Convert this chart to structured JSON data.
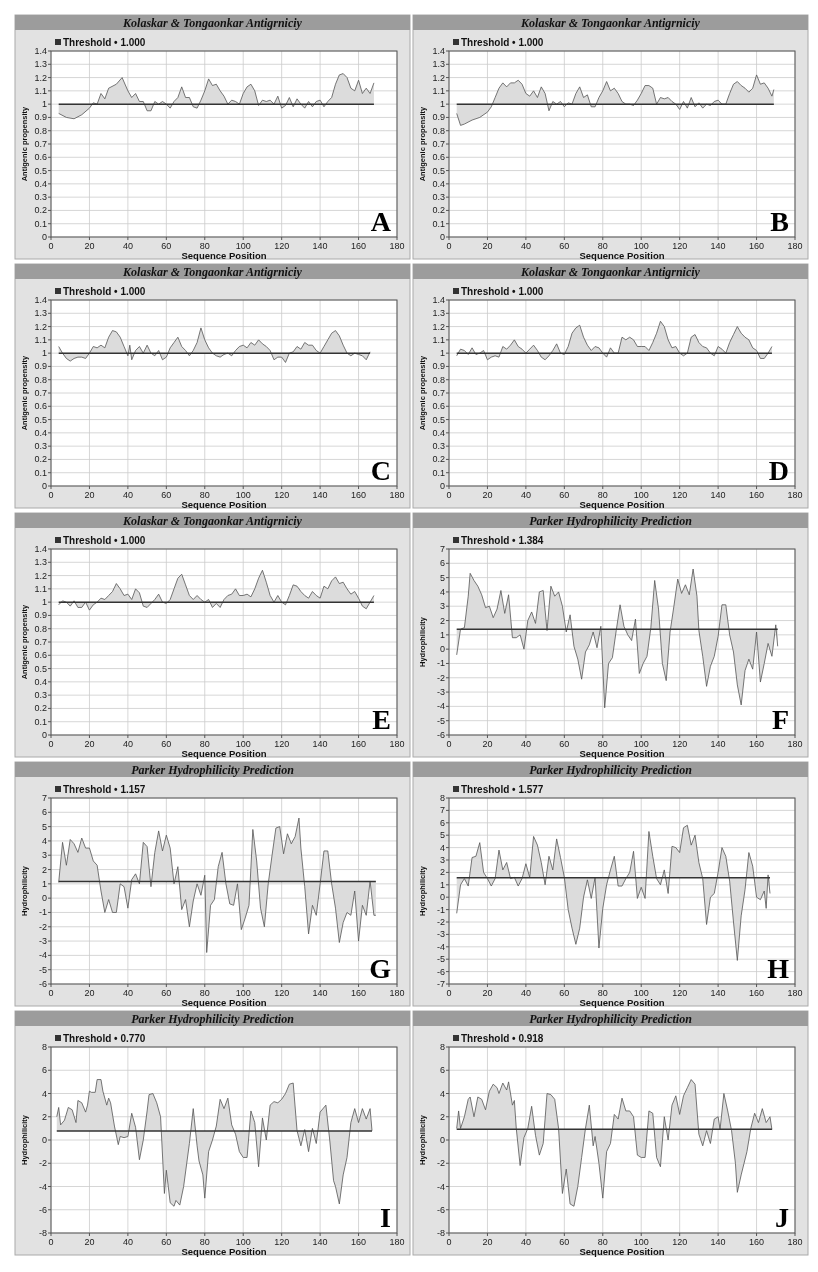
{
  "chart_data": [
    {
      "type": "line",
      "title": "Kolaskar & Tongaonkar Antigrniciy",
      "xlabel": "Sequence Position",
      "ylabel": "Antigenic propensity",
      "annotations": [
        "A"
      ],
      "xlim": [
        0,
        180
      ],
      "xticks": [
        0,
        20,
        40,
        60,
        80,
        100,
        120,
        140,
        160,
        180
      ],
      "ylim": [
        0,
        1.4
      ],
      "yticks": [
        0,
        0.1,
        0.2,
        0.3,
        0.4,
        0.5,
        0.6,
        0.7,
        0.8,
        0.9,
        1,
        1.1,
        1.2,
        1.3,
        1.4
      ],
      "grid": true,
      "ref_lines": [
        {
          "axis": "y",
          "value": 1,
          "label": "Threshold • 1.000",
          "color": "#333333"
        }
      ],
      "series": [
        {
          "color": "#555555",
          "x": [
            4,
            8,
            12,
            16,
            20,
            22,
            24,
            26,
            28,
            30,
            34,
            37,
            40,
            42,
            44,
            46,
            48,
            50,
            52,
            54,
            56,
            58,
            60,
            62,
            64,
            66,
            68,
            70,
            72,
            74,
            76,
            78,
            80,
            82,
            84,
            86,
            88,
            90,
            92,
            94,
            96,
            98,
            100,
            102,
            104,
            106,
            108,
            110,
            112,
            114,
            116,
            118,
            120,
            122,
            124,
            126,
            128,
            130,
            132,
            134,
            136,
            138,
            140,
            142,
            144,
            146,
            148,
            150,
            152,
            154,
            156,
            158,
            160,
            162,
            164,
            166,
            168
          ],
          "values": [
            0.93,
            0.9,
            0.89,
            0.92,
            0.97,
            1.01,
            1,
            1.08,
            1.04,
            1.12,
            1.15,
            1.2,
            1.1,
            1.05,
            1.08,
            1.02,
            1.02,
            0.95,
            0.95,
            1.02,
            1,
            1.02,
            1,
            0.97,
            1.02,
            1.05,
            1.13,
            1.05,
            1.05,
            0.98,
            0.97,
            1.03,
            1.1,
            1.19,
            1.14,
            1.15,
            1.1,
            1.06,
            1,
            1.03,
            1.02,
            1,
            1.08,
            1.13,
            1.15,
            1.1,
            0.99,
            1.03,
            1.02,
            1.03,
            1,
            1.06,
            0.97,
            0.99,
            1.05,
            0.98,
            1.04,
            1,
            0.97,
            1.02,
            0.98,
            1.02,
            1.03,
            0.98,
            1.02,
            1.05,
            1.15,
            1.22,
            1.23,
            1.2,
            1.12,
            1.1,
            1.18,
            1.08,
            1.12,
            1.08,
            1.16
          ]
        }
      ]
    },
    {
      "type": "line",
      "title": "Kolaskar & Tongaonkar Antigrniciy",
      "xlabel": "Sequence Position",
      "ylabel": "Antigenic propensity",
      "annotations": [
        "B"
      ],
      "xlim": [
        0,
        180
      ],
      "xticks": [
        0,
        20,
        40,
        60,
        80,
        100,
        120,
        140,
        160,
        180
      ],
      "ylim": [
        0,
        1.4
      ],
      "yticks": [
        0,
        0.1,
        0.2,
        0.3,
        0.4,
        0.5,
        0.6,
        0.7,
        0.8,
        0.9,
        1,
        1.1,
        1.2,
        1.3,
        1.4
      ],
      "grid": true,
      "ref_lines": [
        {
          "axis": "y",
          "value": 1,
          "label": "Threshold • 1.000",
          "color": "#333333"
        }
      ],
      "series": [
        {
          "color": "#555555",
          "x": [
            4,
            6,
            8,
            12,
            16,
            20,
            22,
            24,
            26,
            28,
            30,
            32,
            34,
            36,
            38,
            40,
            42,
            44,
            46,
            48,
            50,
            52,
            54,
            56,
            58,
            60,
            62,
            64,
            66,
            68,
            70,
            72,
            74,
            76,
            78,
            80,
            82,
            84,
            86,
            88,
            90,
            92,
            94,
            96,
            98,
            100,
            102,
            104,
            106,
            108,
            110,
            112,
            114,
            116,
            118,
            120,
            122,
            124,
            126,
            128,
            130,
            132,
            134,
            136,
            138,
            140,
            142,
            144,
            146,
            148,
            150,
            152,
            154,
            156,
            158,
            160,
            162,
            164,
            166,
            168,
            169
          ],
          "values": [
            0.93,
            0.84,
            0.85,
            0.88,
            0.9,
            0.94,
            0.98,
            1.05,
            1.12,
            1.16,
            1.13,
            1.16,
            1.16,
            1.18,
            1.15,
            1.08,
            1.06,
            1.1,
            1.05,
            1.13,
            1.08,
            0.95,
            1.02,
            1,
            1.02,
            0.98,
            1.01,
            1,
            1.08,
            1.13,
            1.05,
            1.07,
            0.98,
            0.98,
            1.05,
            1.1,
            1.17,
            1.1,
            1.12,
            1.08,
            1.02,
            1,
            1,
            0.99,
            1.03,
            1.08,
            1.14,
            1.14,
            1.12,
            1,
            1.05,
            1.04,
            1.05,
            1.02,
            1,
            0.96,
            1.02,
            0.97,
            1.05,
            0.98,
            1.01,
            0.97,
            1,
            0.99,
            1.02,
            1.03,
            1,
            1,
            1.08,
            1.15,
            1.17,
            1.14,
            1.12,
            1.09,
            1.12,
            1.22,
            1.15,
            1.16,
            1.12,
            1.06,
            1.11
          ]
        }
      ]
    },
    {
      "type": "line",
      "title": "Kolaskar & Tongaonkar Antigrniciy",
      "xlabel": "Sequence Position",
      "ylabel": "Antigenic propensity",
      "annotations": [
        "C"
      ],
      "xlim": [
        0,
        180
      ],
      "xticks": [
        0,
        20,
        40,
        60,
        80,
        100,
        120,
        140,
        160,
        180
      ],
      "ylim": [
        0,
        1.4
      ],
      "yticks": [
        0,
        0.1,
        0.2,
        0.3,
        0.4,
        0.5,
        0.6,
        0.7,
        0.8,
        0.9,
        1,
        1.1,
        1.2,
        1.3,
        1.4
      ],
      "grid": true,
      "ref_lines": [
        {
          "axis": "y",
          "value": 1,
          "label": "Threshold • 1.000",
          "color": "#333333"
        }
      ],
      "series": [
        {
          "color": "#555555",
          "x": [
            4,
            6,
            8,
            10,
            12,
            14,
            16,
            18,
            20,
            22,
            24,
            26,
            28,
            30,
            32,
            34,
            36,
            38,
            40,
            41,
            42,
            44,
            46,
            48,
            50,
            52,
            54,
            56,
            58,
            60,
            62,
            64,
            66,
            68,
            70,
            72,
            74,
            76,
            78,
            80,
            82,
            84,
            86,
            88,
            90,
            92,
            94,
            96,
            98,
            100,
            102,
            104,
            106,
            108,
            110,
            112,
            114,
            116,
            118,
            120,
            122,
            124,
            126,
            128,
            130,
            132,
            134,
            136,
            138,
            140,
            142,
            144,
            146,
            148,
            150,
            152,
            154,
            156,
            158,
            160,
            162,
            164,
            166
          ],
          "values": [
            1.05,
            1,
            0.96,
            0.94,
            0.96,
            0.97,
            0.97,
            0.96,
            1,
            1.05,
            1.04,
            1.06,
            1.04,
            1.12,
            1.17,
            1.16,
            1.12,
            1.05,
            0.98,
            1.06,
            0.95,
            1.02,
            1.05,
            1,
            1.06,
            1,
            0.98,
            1.02,
            0.95,
            0.97,
            1.04,
            1.08,
            1.12,
            1.05,
            1.02,
            0.98,
            1.02,
            1.08,
            1.19,
            1.1,
            1.04,
            1,
            0.98,
            0.97,
            0.99,
            1,
            0.98,
            1.02,
            1.05,
            1.06,
            1.04,
            1.08,
            1.06,
            1.1,
            1.07,
            1.05,
            1.02,
            0.95,
            0.97,
            0.97,
            0.93,
            1,
            1.01,
            1.05,
            1.03,
            1.08,
            1.06,
            1.06,
            1.02,
            1,
            1.05,
            1.1,
            1.15,
            1.17,
            1.13,
            1.06,
            1,
            0.98,
            1,
            0.99,
            0.98,
            0.95,
            1.01
          ]
        }
      ]
    },
    {
      "type": "line",
      "title": "Kolaskar & Tongaonkar Antigrniciy",
      "xlabel": "Sequence Position",
      "ylabel": "Antigenic propensity",
      "annotations": [
        "D"
      ],
      "xlim": [
        0,
        180
      ],
      "xticks": [
        0,
        20,
        40,
        60,
        80,
        100,
        120,
        140,
        160,
        180
      ],
      "ylim": [
        0,
        1.4
      ],
      "yticks": [
        0,
        0.1,
        0.2,
        0.3,
        0.4,
        0.5,
        0.6,
        0.7,
        0.8,
        0.9,
        1,
        1.1,
        1.2,
        1.3,
        1.4
      ],
      "grid": true,
      "ref_lines": [
        {
          "axis": "y",
          "value": 1,
          "label": "Threshold • 1.000",
          "color": "#333333"
        }
      ],
      "series": [
        {
          "color": "#555555",
          "x": [
            4,
            6,
            8,
            10,
            12,
            14,
            16,
            18,
            20,
            22,
            24,
            26,
            28,
            30,
            32,
            34,
            36,
            38,
            40,
            42,
            44,
            46,
            48,
            50,
            52,
            54,
            56,
            58,
            60,
            62,
            64,
            66,
            68,
            70,
            72,
            74,
            76,
            78,
            80,
            82,
            84,
            86,
            88,
            90,
            92,
            94,
            96,
            98,
            100,
            102,
            104,
            106,
            108,
            110,
            112,
            114,
            116,
            118,
            120,
            122,
            124,
            126,
            128,
            130,
            132,
            134,
            136,
            138,
            140,
            142,
            144,
            146,
            148,
            150,
            152,
            154,
            156,
            158,
            160,
            162,
            164,
            166,
            168
          ],
          "values": [
            0.98,
            1.03,
            1.02,
            0.99,
            1.04,
            0.99,
            1,
            1.02,
            0.95,
            0.97,
            0.98,
            0.97,
            1.05,
            1.03,
            1.06,
            1.1,
            1.05,
            1.03,
            1,
            1.03,
            1.06,
            1.02,
            0.97,
            0.95,
            0.98,
            1.02,
            1.07,
            1,
            0.99,
            1.05,
            1.15,
            1.19,
            1.21,
            1.12,
            1.06,
            1.02,
            1.05,
            1.04,
            1,
            0.97,
            1.04,
            1,
            1,
            1.12,
            1.1,
            1.12,
            1.1,
            1.05,
            1.05,
            1.05,
            1.02,
            1.08,
            1.15,
            1.24,
            1.2,
            1.1,
            1.04,
            1.05,
            1,
            0.98,
            1,
            1.12,
            1.14,
            1.08,
            1.05,
            1.04,
            1,
            0.98,
            1.05,
            1.03,
            1,
            1.08,
            1.14,
            1.2,
            1.15,
            1.12,
            1.1,
            1.04,
            1.02,
            0.96,
            0.96,
            1,
            1.05
          ]
        }
      ]
    },
    {
      "type": "line",
      "title": "Kolaskar & Tongaonkar Antigrniciy",
      "xlabel": "Sequence Position",
      "ylabel": "Antigenic propensity",
      "annotations": [
        "E"
      ],
      "xlim": [
        0,
        180
      ],
      "xticks": [
        0,
        20,
        40,
        60,
        80,
        100,
        120,
        140,
        160,
        180
      ],
      "ylim": [
        0,
        1.4
      ],
      "yticks": [
        0,
        0.1,
        0.2,
        0.3,
        0.4,
        0.5,
        0.6,
        0.7,
        0.8,
        0.9,
        1,
        1.1,
        1.2,
        1.3,
        1.4
      ],
      "grid": true,
      "ref_lines": [
        {
          "axis": "y",
          "value": 1,
          "label": "Threshold • 1.000",
          "color": "#333333"
        }
      ],
      "series": [
        {
          "color": "#555555",
          "x": [
            4,
            6,
            8,
            10,
            12,
            14,
            16,
            18,
            20,
            22,
            24,
            26,
            28,
            30,
            32,
            34,
            36,
            38,
            40,
            42,
            44,
            46,
            48,
            50,
            52,
            54,
            56,
            58,
            60,
            62,
            64,
            66,
            68,
            70,
            72,
            74,
            76,
            78,
            80,
            82,
            84,
            86,
            88,
            90,
            92,
            94,
            96,
            98,
            100,
            102,
            104,
            106,
            108,
            110,
            112,
            114,
            116,
            118,
            120,
            122,
            124,
            126,
            128,
            130,
            132,
            134,
            136,
            138,
            140,
            142,
            144,
            146,
            148,
            150,
            152,
            154,
            156,
            158,
            160,
            162,
            164,
            166,
            168
          ],
          "values": [
            0.98,
            1.01,
            1,
            0.97,
            1.01,
            0.96,
            0.96,
            1,
            0.94,
            0.98,
            1,
            1.03,
            1.02,
            1.05,
            1.08,
            1.14,
            1.1,
            1.05,
            1.06,
            1.02,
            1.1,
            1.07,
            0.97,
            0.96,
            0.99,
            1.02,
            1.06,
            1,
            0.99,
            1.02,
            1.1,
            1.18,
            1.21,
            1.13,
            1.05,
            1.02,
            1.05,
            1.02,
            1,
            1.02,
            0.96,
            0.99,
            0.96,
            1.02,
            1.05,
            1.06,
            1.1,
            1.05,
            1.05,
            1.06,
            1.04,
            1.1,
            1.18,
            1.24,
            1.15,
            1.05,
            1,
            1.05,
            1,
            0.98,
            1.05,
            1.13,
            1.12,
            1.08,
            1.05,
            1.03,
            1.08,
            1.05,
            1.03,
            1.12,
            1.1,
            1.16,
            1.19,
            1.14,
            1.15,
            1.1,
            1.06,
            1.08,
            1.03,
            0.97,
            0.95,
            1,
            1.05
          ]
        }
      ]
    },
    {
      "type": "line",
      "title": "Parker Hydrophilicity Prediction",
      "xlabel": "Sequence Position",
      "ylabel": "Hydrophilicity",
      "annotations": [
        "F"
      ],
      "xlim": [
        0,
        180
      ],
      "xticks": [
        0,
        20,
        40,
        60,
        80,
        100,
        120,
        140,
        160,
        180
      ],
      "ylim": [
        -6,
        7
      ],
      "yticks": [
        -6,
        -5,
        -4,
        -3,
        -2,
        -1,
        0,
        1,
        2,
        3,
        4,
        5,
        6,
        7
      ],
      "grid": true,
      "ref_lines": [
        {
          "axis": "y",
          "value": 1.384,
          "label": "Threshold • 1.384",
          "color": "#333333"
        }
      ],
      "series": [
        {
          "color": "#555555",
          "x": [
            4,
            6,
            8,
            10,
            11,
            13,
            15,
            17,
            19,
            21,
            23,
            25,
            27,
            29,
            31,
            33,
            35,
            37,
            39,
            41,
            43,
            45,
            47,
            49,
            51,
            53,
            55,
            57,
            59,
            61,
            63,
            65,
            67,
            69,
            71,
            73,
            75,
            77,
            79,
            81,
            83,
            85,
            87,
            89,
            91,
            93,
            95,
            97,
            99,
            101,
            103,
            105,
            107,
            109,
            111,
            113,
            115,
            117,
            119,
            121,
            123,
            125,
            127,
            129,
            130,
            132,
            134,
            136,
            138,
            140,
            142,
            144,
            146,
            148,
            150,
            152,
            154,
            156,
            158,
            160,
            162,
            164,
            166,
            168,
            170,
            171
          ],
          "values": [
            -0.4,
            1.4,
            1.5,
            3.7,
            5.3,
            4.8,
            4.4,
            3.8,
            2.9,
            3,
            2.2,
            2.8,
            4.1,
            2.5,
            3.8,
            0.8,
            0.8,
            1,
            0,
            2,
            2.6,
            1.8,
            4,
            4.1,
            1.3,
            4.4,
            3.7,
            4,
            3,
            1.2,
            2.4,
            0.2,
            -0.7,
            -2.1,
            -0.2,
            0.3,
            1.2,
            0.1,
            1.6,
            -4.1,
            -1,
            -0.6,
            1.3,
            3.1,
            1.6,
            1,
            0.6,
            2.1,
            -1.7,
            -1,
            -0.5,
            1.5,
            4.8,
            2.8,
            -1,
            -2.2,
            1.2,
            3,
            4.9,
            3.9,
            4.5,
            3.8,
            5.6,
            3.7,
            1.3,
            -0.5,
            -2.6,
            -1.2,
            -0.5,
            0.9,
            3.1,
            3.1,
            1,
            -0.2,
            -2.5,
            -3.9,
            -1.5,
            -0.7,
            -1.4,
            1.2,
            -2.3,
            -1,
            0.4,
            -0.5,
            1.7,
            0.2
          ]
        }
      ]
    },
    {
      "type": "line",
      "title": "Parker Hydrophilicity Prediction",
      "xlabel": "Sequence Position",
      "ylabel": "Hydrophilicity",
      "annotations": [
        "G"
      ],
      "xlim": [
        0,
        180
      ],
      "xticks": [
        0,
        20,
        40,
        60,
        80,
        100,
        120,
        140,
        160,
        180
      ],
      "ylim": [
        -6,
        7
      ],
      "yticks": [
        -6,
        -5,
        -4,
        -3,
        -2,
        -1,
        0,
        1,
        2,
        3,
        4,
        5,
        6,
        7
      ],
      "grid": true,
      "ref_lines": [
        {
          "axis": "y",
          "value": 1.157,
          "label": "Threshold • 1.157",
          "color": "#333333"
        }
      ],
      "series": [
        {
          "color": "#555555",
          "x": [
            4,
            6,
            8,
            10,
            12,
            14,
            16,
            18,
            20,
            22,
            24,
            26,
            28,
            30,
            32,
            34,
            36,
            38,
            40,
            42,
            44,
            46,
            48,
            50,
            52,
            54,
            56,
            58,
            60,
            62,
            64,
            66,
            68,
            70,
            72,
            74,
            76,
            78,
            80,
            81,
            83,
            85,
            87,
            89,
            91,
            93,
            95,
            97,
            99,
            101,
            103,
            105,
            107,
            109,
            111,
            113,
            115,
            117,
            119,
            121,
            123,
            125,
            127,
            129,
            130,
            132,
            134,
            136,
            138,
            140,
            142,
            144,
            146,
            148,
            150,
            152,
            154,
            156,
            158,
            160,
            162,
            164,
            166,
            168,
            169
          ],
          "values": [
            1.1,
            3.9,
            2.3,
            4.1,
            3.8,
            3.2,
            4.2,
            3.5,
            3.5,
            2.6,
            2.3,
            0.5,
            -1,
            -0.1,
            -1,
            -1,
            1,
            0.8,
            -0.7,
            1.3,
            1.7,
            1,
            3.9,
            3.6,
            0.8,
            3.2,
            4.7,
            3.3,
            4.4,
            3.5,
            1,
            2.2,
            -0.8,
            -0.1,
            -2,
            -0.2,
            1,
            0.2,
            1.6,
            -3.8,
            -0.5,
            -0.1,
            2.2,
            3.2,
            1,
            -0.4,
            -0.5,
            1,
            -2.2,
            -1.4,
            -0.5,
            4.8,
            2.6,
            -0.7,
            -2,
            1,
            3,
            4.9,
            5,
            3.1,
            4.5,
            3.8,
            4.3,
            5.6,
            3.5,
            0.8,
            -2.5,
            -0.5,
            -1.2,
            1,
            3.3,
            3.3,
            1,
            -0.7,
            -3.1,
            -1.7,
            -1,
            -1.2,
            0.5,
            -3,
            -0.5,
            -1.2,
            1.2,
            -1.2,
            -1.2
          ]
        }
      ]
    },
    {
      "type": "line",
      "title": "Parker Hydrophilicity Prediction",
      "xlabel": "Sequence Position",
      "ylabel": "Hydrophilicity",
      "annotations": [
        "H"
      ],
      "xlim": [
        0,
        180
      ],
      "xticks": [
        0,
        20,
        40,
        60,
        80,
        100,
        120,
        140,
        160,
        180
      ],
      "ylim": [
        -7,
        8
      ],
      "yticks": [
        -7,
        -6,
        -5,
        -4,
        -3,
        -2,
        -1,
        0,
        1,
        2,
        3,
        4,
        5,
        6,
        7,
        8
      ],
      "grid": true,
      "ref_lines": [
        {
          "axis": "y",
          "value": 1.577,
          "label": "Threshold • 1.577",
          "color": "#333333"
        }
      ],
      "series": [
        {
          "color": "#555555",
          "x": [
            4,
            6,
            8,
            10,
            12,
            14,
            16,
            18,
            20,
            22,
            24,
            26,
            28,
            30,
            32,
            34,
            36,
            38,
            40,
            42,
            44,
            46,
            48,
            50,
            52,
            54,
            56,
            58,
            60,
            62,
            64,
            66,
            68,
            70,
            72,
            74,
            76,
            78,
            80,
            82,
            84,
            86,
            88,
            90,
            92,
            94,
            96,
            98,
            100,
            102,
            104,
            106,
            108,
            110,
            112,
            114,
            116,
            118,
            120,
            122,
            124,
            126,
            128,
            130,
            132,
            134,
            136,
            138,
            140,
            142,
            144,
            146,
            148,
            150,
            152,
            154,
            156,
            158,
            160,
            162,
            164,
            165,
            166,
            167
          ],
          "values": [
            -1.3,
            1,
            1.5,
            0.9,
            3.2,
            3.3,
            4.4,
            2,
            1.5,
            0.9,
            1.5,
            3.8,
            2.2,
            2.8,
            1.5,
            1.6,
            0.9,
            1.5,
            2.7,
            1.6,
            4.9,
            4.2,
            2.8,
            1,
            3.3,
            2.2,
            4.7,
            3.2,
            1.6,
            -1,
            -2.5,
            -3.8,
            -2.5,
            0,
            1.4,
            -0.1,
            1.6,
            -4.1,
            -0.9,
            1,
            2.2,
            3.3,
            0.9,
            0.9,
            1.5,
            2,
            3.7,
            -0.1,
            0.8,
            -0.1,
            5.3,
            3.3,
            1.5,
            1,
            2.2,
            0.3,
            4.1,
            4,
            3.6,
            5.6,
            5.8,
            4.2,
            5,
            2.8,
            1.5,
            -2.2,
            0,
            0.3,
            2,
            4,
            3.3,
            1.3,
            -2,
            -5.1,
            -1.5,
            0.6,
            3.6,
            2.5,
            0,
            -0.2,
            0.5,
            -0.9,
            1.8,
            0.3
          ]
        }
      ]
    },
    {
      "type": "line",
      "title": "Parker Hydrophilicity Prediction",
      "xlabel": "Sequence Position",
      "ylabel": "Hydrophilicity",
      "annotations": [
        "I"
      ],
      "xlim": [
        0,
        180
      ],
      "xticks": [
        0,
        20,
        40,
        60,
        80,
        100,
        120,
        140,
        160,
        180
      ],
      "ylim": [
        -8,
        8
      ],
      "yticks": [
        -8,
        -6,
        -4,
        -2,
        0,
        2,
        4,
        6,
        8
      ],
      "grid": true,
      "ref_lines": [
        {
          "axis": "y",
          "value": 0.77,
          "label": "Threshold • 0.770",
          "color": "#333333"
        }
      ],
      "series": [
        {
          "color": "#555555",
          "x": [
            3,
            4,
            5,
            7,
            9,
            11,
            13,
            14,
            16,
            18,
            19,
            20,
            21,
            23,
            24,
            26,
            27,
            29,
            30,
            31,
            33,
            35,
            36,
            38,
            40,
            42,
            44,
            46,
            48,
            50,
            51,
            53,
            55,
            57,
            59,
            60,
            62,
            64,
            65,
            67,
            69,
            72,
            74,
            76,
            77,
            79,
            80,
            82,
            84,
            86,
            88,
            90,
            92,
            94,
            96,
            98,
            100,
            102,
            104,
            106,
            108,
            110,
            112,
            114,
            116,
            118,
            120,
            122,
            124,
            126,
            128,
            130,
            132,
            134,
            136,
            138,
            140,
            143,
            145,
            147,
            148,
            150,
            152,
            154,
            156,
            158,
            160,
            162,
            164,
            166,
            167
          ],
          "values": [
            2,
            2.8,
            1.3,
            1.7,
            2.8,
            2.6,
            1.5,
            3.4,
            3.2,
            2.4,
            3,
            4.2,
            4.1,
            4.1,
            5.2,
            5.2,
            4.2,
            3,
            3.6,
            3.2,
            1.2,
            -0.4,
            0.3,
            0.2,
            0.3,
            2.3,
            1.1,
            -1.7,
            0,
            2.5,
            3.9,
            4,
            3.2,
            2,
            -4.6,
            -2.6,
            -5.4,
            -5.7,
            -5.2,
            -5.6,
            -4,
            -0.3,
            2.7,
            -0.5,
            -1.8,
            -3,
            -5,
            -1,
            0,
            1.2,
            3.5,
            2.7,
            3.6,
            1.3,
            0.5,
            -1,
            -1.5,
            -1.5,
            2.5,
            1.5,
            -2.3,
            1.9,
            0,
            3,
            3.3,
            3.2,
            3.5,
            4,
            4.8,
            4.9,
            0.8,
            -0.5,
            0.9,
            -1,
            1,
            -0.3,
            2.4,
            3,
            0,
            -3.5,
            -4,
            -5.5,
            -3,
            -1.5,
            1.5,
            2.7,
            1.5,
            2.7,
            1.8,
            2.7,
            0.8
          ]
        }
      ]
    },
    {
      "type": "line",
      "title": "Parker Hydrophilicity Prediction",
      "xlabel": "Sequence Position",
      "ylabel": "Hydrophilicity",
      "annotations": [
        "J"
      ],
      "xlim": [
        0,
        180
      ],
      "xticks": [
        0,
        20,
        40,
        60,
        80,
        100,
        120,
        140,
        160,
        180
      ],
      "ylim": [
        -8,
        8
      ],
      "yticks": [
        -8,
        -6,
        -4,
        -2,
        0,
        2,
        4,
        6,
        8
      ],
      "grid": true,
      "ref_lines": [
        {
          "axis": "y",
          "value": 0.918,
          "label": "Threshold • 0.918",
          "color": "#333333"
        }
      ],
      "series": [
        {
          "color": "#555555",
          "x": [
            4,
            5,
            6,
            8,
            10,
            11,
            13,
            15,
            17,
            19,
            21,
            23,
            25,
            26,
            28,
            30,
            31,
            33,
            34,
            35,
            37,
            39,
            41,
            43,
            45,
            47,
            49,
            51,
            53,
            55,
            57,
            59,
            61,
            63,
            65,
            67,
            69,
            71,
            73,
            75,
            76,
            78,
            80,
            82,
            84,
            86,
            88,
            90,
            92,
            94,
            96,
            98,
            100,
            102,
            104,
            106,
            108,
            110,
            112,
            114,
            116,
            118,
            120,
            122,
            124,
            126,
            128,
            130,
            132,
            134,
            136,
            138,
            140,
            141,
            143,
            145,
            147,
            149,
            150,
            152,
            155,
            157,
            159,
            161,
            163,
            165,
            167,
            168
          ],
          "values": [
            1,
            2.5,
            1,
            2,
            3.5,
            3.7,
            2,
            3.7,
            3.5,
            2.6,
            4.2,
            4.8,
            4.5,
            4,
            4.9,
            4.3,
            5,
            3,
            3.4,
            1,
            -2.2,
            0.2,
            1,
            2.9,
            0.4,
            -1.3,
            -0.3,
            4,
            3.9,
            3.5,
            1,
            -4.6,
            -2.5,
            -5.5,
            -5.7,
            -4,
            -1.5,
            1,
            3,
            -0.5,
            0.3,
            -2,
            -5,
            -1,
            -0.3,
            2.2,
            1.8,
            3.6,
            2.5,
            2.5,
            2,
            -1.3,
            -1.5,
            -1.5,
            2.5,
            2.3,
            -1.5,
            -2.3,
            2,
            0,
            3,
            3.8,
            2.2,
            3.8,
            4.5,
            5.2,
            4.8,
            0.5,
            -0.5,
            0.8,
            -0.3,
            1.8,
            2,
            0.9,
            4,
            2.5,
            0.8,
            -2,
            -4.5,
            -3,
            -1,
            1,
            2.3,
            1.5,
            2.7,
            1.5,
            2,
            0.9
          ]
        }
      ]
    }
  ]
}
